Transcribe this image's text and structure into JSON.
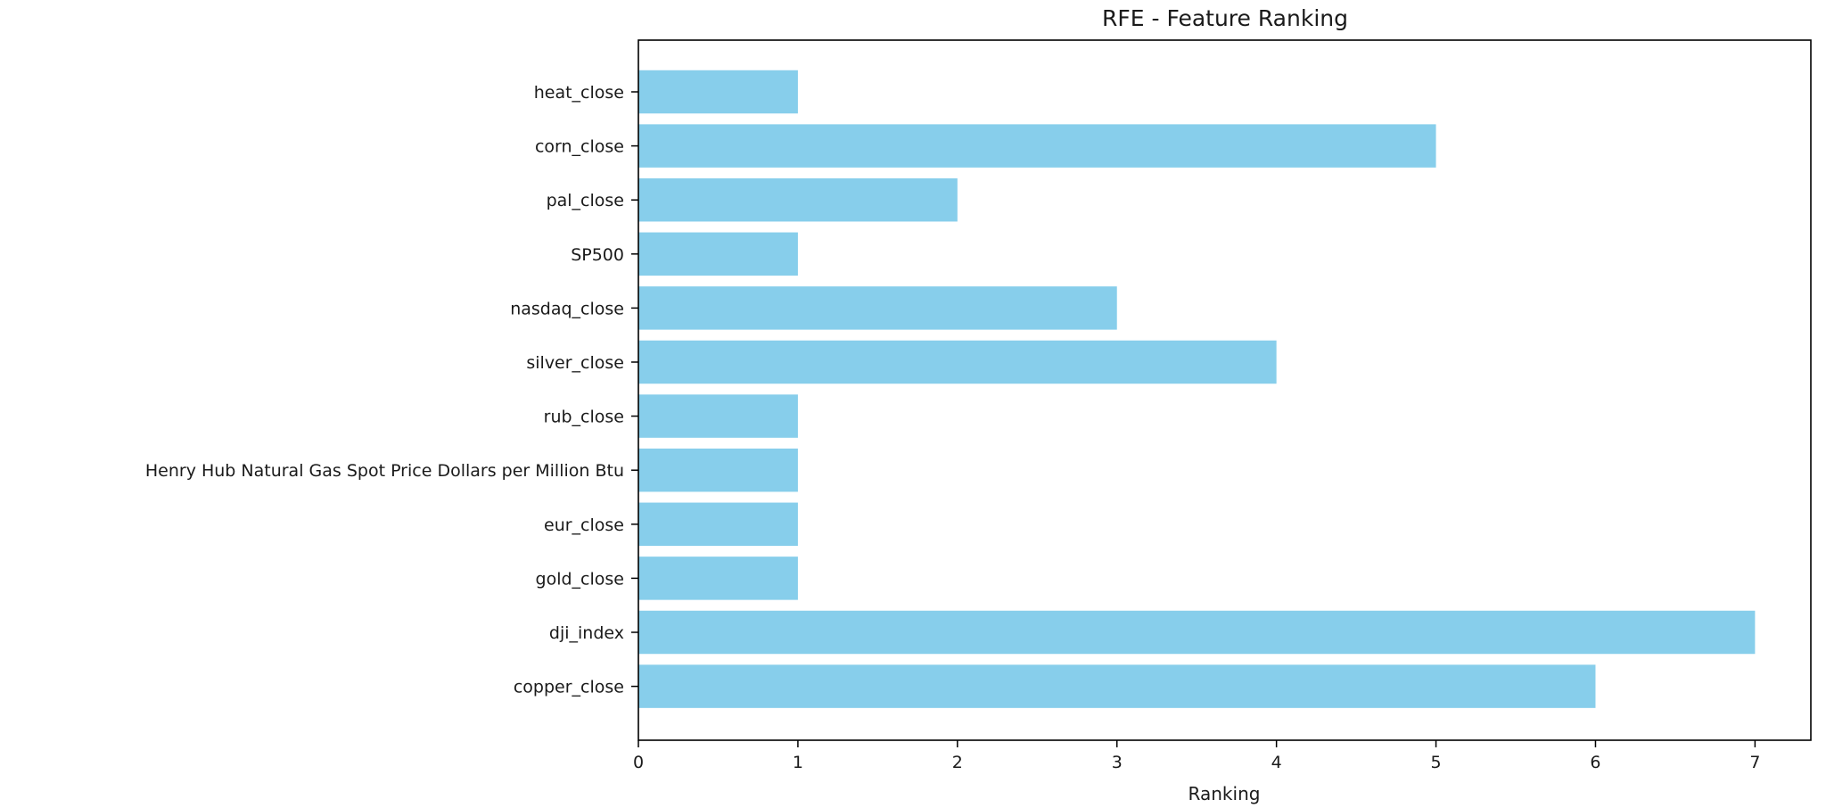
{
  "chart_data": {
    "type": "bar",
    "orientation": "horizontal",
    "title": "RFE - Feature Ranking",
    "xlabel": "Ranking",
    "ylabel": "",
    "categories": [
      "heat_close",
      "corn_close",
      "pal_close",
      "SP500",
      "nasdaq_close",
      "silver_close",
      "rub_close",
      "Henry Hub Natural Gas Spot Price Dollars per Million Btu",
      "eur_close",
      "gold_close",
      "dji_index",
      "copper_close"
    ],
    "values": [
      1,
      5,
      2,
      1,
      3,
      4,
      1,
      1,
      1,
      1,
      7,
      6
    ],
    "xlim": [
      0,
      7.35
    ],
    "xticks": [
      0,
      1,
      2,
      3,
      4,
      5,
      6,
      7
    ],
    "grid": false,
    "legend": false,
    "colors": {
      "bar": "#87ceeb",
      "axis": "#000000",
      "text": "#1a1a1a"
    }
  }
}
